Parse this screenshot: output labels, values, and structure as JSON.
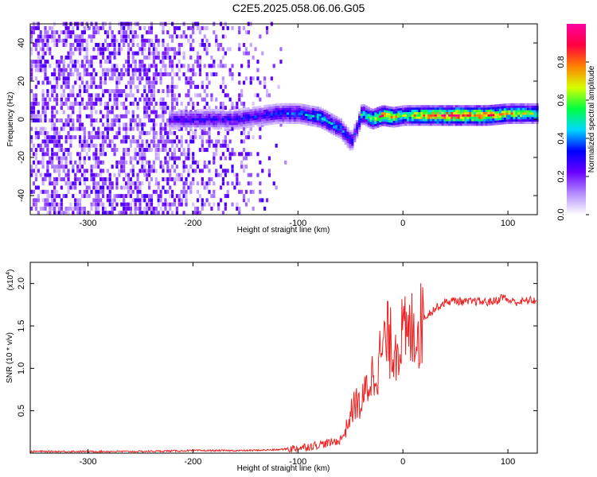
{
  "title": "C2E5.2025.058.06.06.G05",
  "chart_data": [
    {
      "type": "heatmap",
      "xlabel": "Height of straight line (km)",
      "ylabel": "Frequency (Hz)",
      "xlim": [
        -355,
        128
      ],
      "ylim": [
        -50,
        50
      ],
      "xticks": [
        -300,
        -200,
        -100,
        0,
        100
      ],
      "yticks": [
        -40,
        -20,
        0,
        20,
        40
      ],
      "colorbar": {
        "label": "Normalized spectral amplitude",
        "range": [
          0,
          1
        ],
        "ticks": [
          "0.0",
          "0.2",
          "0.4",
          "0.6",
          "0.8"
        ],
        "tick_values": [
          0.0,
          0.2,
          0.4,
          0.6,
          0.8
        ],
        "colors": [
          "#ffffff",
          "#b48cff",
          "#6a00ff",
          "#0000ff",
          "#00d8ff",
          "#00ff40",
          "#d8ff00",
          "#ff8000",
          "#ff0040",
          "#ff00a0"
        ]
      },
      "ridge": {
        "x": [
          -225,
          -200,
          -160,
          -120,
          -100,
          -80,
          -60,
          -50,
          -45,
          -40,
          -30,
          -20,
          -10,
          0,
          20,
          50,
          80,
          100,
          128
        ],
        "y": [
          0,
          0,
          0,
          3,
          3,
          1,
          -5,
          -12,
          -5,
          3,
          0,
          2,
          1,
          2,
          2,
          2,
          2,
          3,
          3
        ],
        "amplitude": [
          0.25,
          0.3,
          0.3,
          0.35,
          0.4,
          0.5,
          0.4,
          0.35,
          0.3,
          0.5,
          0.6,
          0.9,
          0.7,
          0.6,
          0.8,
          0.9,
          0.85,
          0.7,
          0.6
        ]
      }
    },
    {
      "type": "line",
      "xlabel": "Height of straight line (km)",
      "ylabel": "SNR (10 * v/v)",
      "yscale_label": "(x10",
      "yscale_exp": "4",
      "yscale_close": ")",
      "xlim": [
        -355,
        128
      ],
      "ylim": [
        0,
        2.25
      ],
      "xticks": [
        -300,
        -200,
        -100,
        0,
        100
      ],
      "yticks": [
        0.5,
        1.0,
        1.5,
        2.0
      ],
      "ytick_labels": [
        "0.5",
        "1.0",
        "1.5",
        "2.0"
      ],
      "color": "#ee2020",
      "x": [
        -355,
        -300,
        -250,
        -200,
        -150,
        -120,
        -100,
        -90,
        -80,
        -70,
        -60,
        -55,
        -50,
        -45,
        -40,
        -35,
        -30,
        -25,
        -20,
        -15,
        -10,
        -5,
        0,
        5,
        10,
        15,
        20,
        25,
        30,
        40,
        50,
        60,
        70,
        80,
        90,
        95,
        100,
        110,
        120,
        128
      ],
      "y": [
        0.02,
        0.02,
        0.02,
        0.03,
        0.03,
        0.04,
        0.06,
        0.08,
        0.1,
        0.12,
        0.15,
        0.25,
        0.45,
        0.6,
        0.55,
        0.75,
        0.9,
        1.0,
        1.2,
        1.35,
        1.25,
        1.3,
        1.4,
        1.35,
        1.5,
        1.45,
        1.6,
        1.65,
        1.7,
        1.78,
        1.8,
        1.78,
        1.79,
        1.78,
        1.8,
        1.85,
        1.8,
        1.78,
        1.8,
        1.8
      ]
    }
  ]
}
